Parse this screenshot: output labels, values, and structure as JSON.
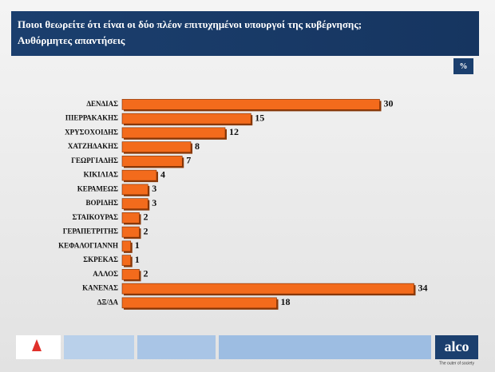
{
  "chart_data": {
    "type": "bar",
    "orientation": "horizontal",
    "title": "Ποιοι θεωρείτε ότι είναι οι δύο πλέον επιτυχημένοι υπουργοί της κυβέρνησης;",
    "subtitle": "Αυθόρμητες απαντήσεις",
    "unit": "%",
    "categories": [
      "ΔΕΝΔΙΑΣ",
      "ΠΙΕΡΡΑΚΑΚΗΣ",
      "ΧΡΥΣΟΧΟΙΔΗΣ",
      "ΧΑΤΖΗΔΑΚΗΣ",
      "ΓΕΩΡΓΙΑΔΗΣ",
      "ΚΙΚΙΛΙΑΣ",
      "ΚΕΡΑΜΕΩΣ",
      "ΒΟΡΙΔΗΣ",
      "ΣΤΑΙΚΟΥΡΑΣ",
      "ΓΕΡΑΠΕΤΡΙΤΗΣ",
      "ΚΕΦΑΛΟΓΙΑΝΝΗ",
      "ΣΚΡΕΚΑΣ",
      "ΑΛΛΟΣ",
      "ΚΑΝΕΝΑΣ",
      "ΔΞ/ΔΑ"
    ],
    "values": [
      30,
      15,
      12,
      8,
      7,
      4,
      3,
      3,
      2,
      2,
      1,
      1,
      2,
      34,
      18
    ],
    "color": "#f36b1c",
    "brand": "alco",
    "brand_tagline": "The outer of society"
  }
}
